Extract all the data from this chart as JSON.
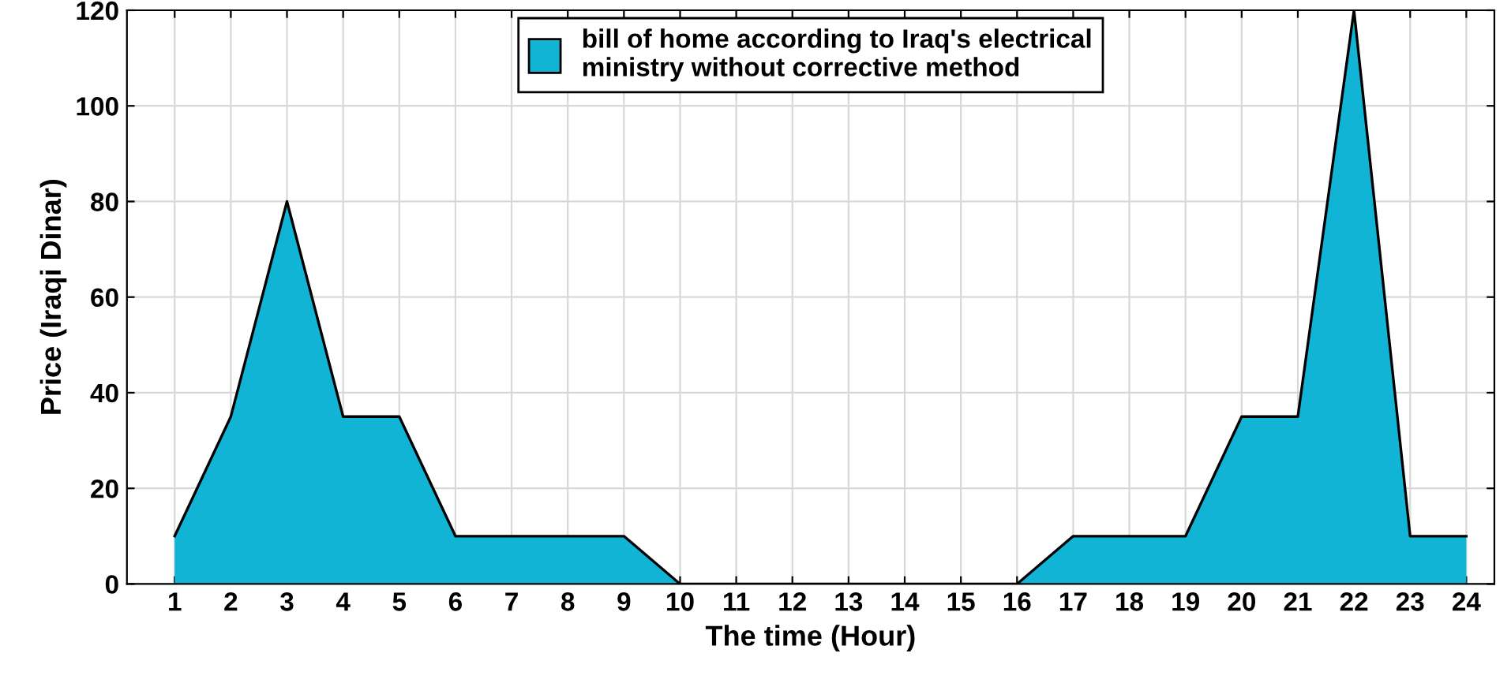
{
  "chart_data": {
    "type": "area",
    "xlabel": "The time (Hour)",
    "ylabel": "Price (Iraqi Dinar)",
    "x": [
      1,
      2,
      3,
      4,
      5,
      6,
      7,
      8,
      9,
      10,
      11,
      12,
      13,
      14,
      15,
      16,
      17,
      18,
      19,
      20,
      21,
      22,
      23,
      24
    ],
    "series": [
      {
        "name": "bill of home according to Iraq's electrical\nministry without corrective method",
        "color": "#12b4d6",
        "values": [
          10,
          35,
          80,
          35,
          35,
          10,
          10,
          10,
          10,
          0,
          0,
          0,
          0,
          0,
          0,
          0,
          10,
          10,
          10,
          35,
          35,
          120,
          10,
          10
        ]
      }
    ],
    "xlim": [
      0.15,
      24.5
    ],
    "xticks": [
      1,
      2,
      3,
      4,
      5,
      6,
      7,
      8,
      9,
      10,
      11,
      12,
      13,
      14,
      15,
      16,
      17,
      18,
      19,
      20,
      21,
      22,
      23,
      24
    ],
    "ylim": [
      0,
      120
    ],
    "yticks": [
      0,
      20,
      40,
      60,
      80,
      100,
      120
    ],
    "grid": true,
    "legend": "top"
  }
}
